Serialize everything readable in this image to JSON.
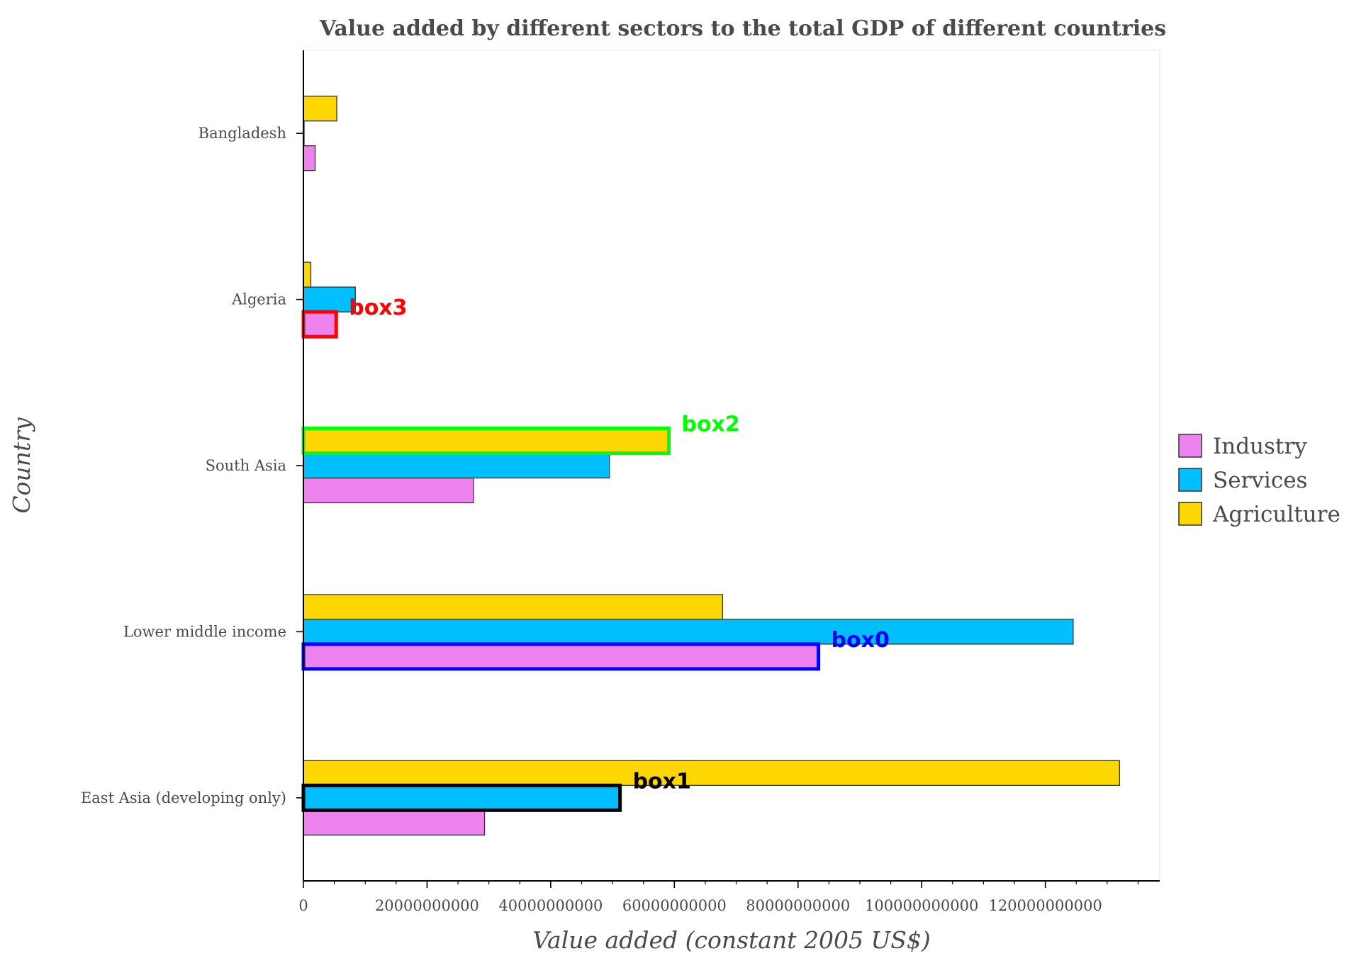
{
  "chart_data": {
    "type": "bar",
    "orientation": "horizontal",
    "title": "Value added by different sectors to the total GDP of different countries",
    "xlabel": "Value added (constant 2005 US$)",
    "ylabel": "Country",
    "xlim": [
      0,
      138500000000
    ],
    "xticks": [
      0,
      20000000000,
      40000000000,
      60000000000,
      80000000000,
      100000000000,
      120000000000
    ],
    "xtick_labels": [
      "0",
      "20000000000",
      "40000000000",
      "60000000000",
      "80000000000",
      "100000000000",
      "120000000000"
    ],
    "categories": [
      "Bangladesh",
      "Algeria",
      "South Asia",
      "Lower middle income",
      "East Asia (developing only)"
    ],
    "series": [
      {
        "name": "Industry",
        "color": "#ee82ee",
        "values": [
          1900000000,
          5300000000,
          27500000000,
          83300000000,
          29300000000
        ]
      },
      {
        "name": "Services",
        "color": "#00bfff",
        "values": [
          100000000,
          8400000000,
          49500000000,
          124500000000,
          51200000000
        ]
      },
      {
        "name": "Agriculture",
        "color": "#ffd700",
        "values": [
          5400000000,
          1200000000,
          59100000000,
          67800000000,
          132000000000
        ]
      }
    ],
    "legend": {
      "position": "right",
      "entries": [
        "Industry",
        "Services",
        "Agriculture"
      ]
    },
    "annotations": [
      {
        "label": "box0",
        "color": "#0000ff",
        "category": "Lower middle income",
        "series": "Industry"
      },
      {
        "label": "box1",
        "color": "#000000",
        "category": "East Asia (developing only)",
        "series": "Services"
      },
      {
        "label": "box2",
        "color": "#00ff00",
        "category": "South Asia",
        "series": "Agriculture"
      },
      {
        "label": "box3",
        "color": "#ff0000",
        "category": "Algeria",
        "series": "Industry"
      }
    ]
  }
}
